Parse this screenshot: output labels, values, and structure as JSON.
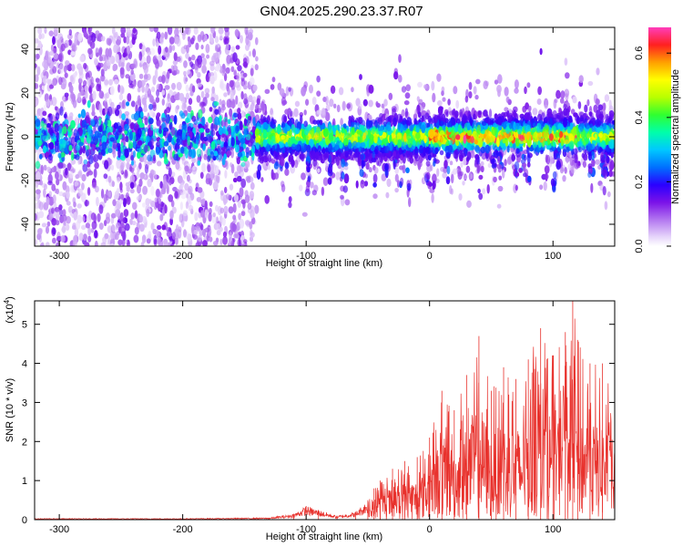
{
  "title": "GN04.2025.290.23.37.R07",
  "chart_data": [
    {
      "type": "heatmap",
      "name": "spectrogram",
      "xlabel": "Height of straight line (km)",
      "ylabel": "Frequency (Hz)",
      "xlim": [
        -320,
        150
      ],
      "ylim": [
        -50,
        50
      ],
      "xticks": [
        -300,
        -200,
        -100,
        0,
        100
      ],
      "yticks": [
        -40,
        -20,
        0,
        20,
        40
      ],
      "colorbar": {
        "label": "Normalized spectral amplitude",
        "range": [
          0.0,
          0.68
        ],
        "ticks": [
          0.0,
          0.2,
          0.4,
          0.6
        ]
      },
      "band_center_hz": 0,
      "band_halfwidth_hz": 8,
      "strong_region_start_km": -140,
      "peak_region_km": [
        0,
        120
      ]
    },
    {
      "type": "line",
      "name": "snr",
      "xlabel": "Height of straight line (km)",
      "ylabel": "SNR (10 * v/v)",
      "scale_label": "(x10",
      "scale_exponent": "4",
      "xlim": [
        -320,
        150
      ],
      "ylim": [
        0,
        5.6
      ],
      "xticks": [
        -300,
        -200,
        -100,
        0,
        100
      ],
      "yticks": [
        0,
        1,
        2,
        3,
        4,
        5
      ],
      "color": "#e8312c",
      "series": [
        {
          "name": "SNR",
          "x": [
            -320,
            -200,
            -130,
            -110,
            -100,
            -90,
            -75,
            -60,
            -50,
            -45,
            -40,
            -30,
            -20,
            -10,
            0,
            10,
            20,
            30,
            40,
            50,
            60,
            70,
            80,
            90,
            100,
            110,
            116,
            120,
            130,
            140,
            150
          ],
          "values": [
            0.03,
            0.03,
            0.05,
            0.15,
            0.35,
            0.25,
            0.1,
            0.2,
            0.5,
            0.8,
            1.0,
            1.3,
            1.5,
            1.6,
            2.1,
            3.3,
            2.8,
            3.7,
            4.7,
            3.3,
            3.9,
            3.6,
            4.1,
            4.9,
            4.2,
            4.8,
            5.6,
            4.6,
            4.0,
            4.0,
            3.0
          ]
        }
      ]
    }
  ]
}
